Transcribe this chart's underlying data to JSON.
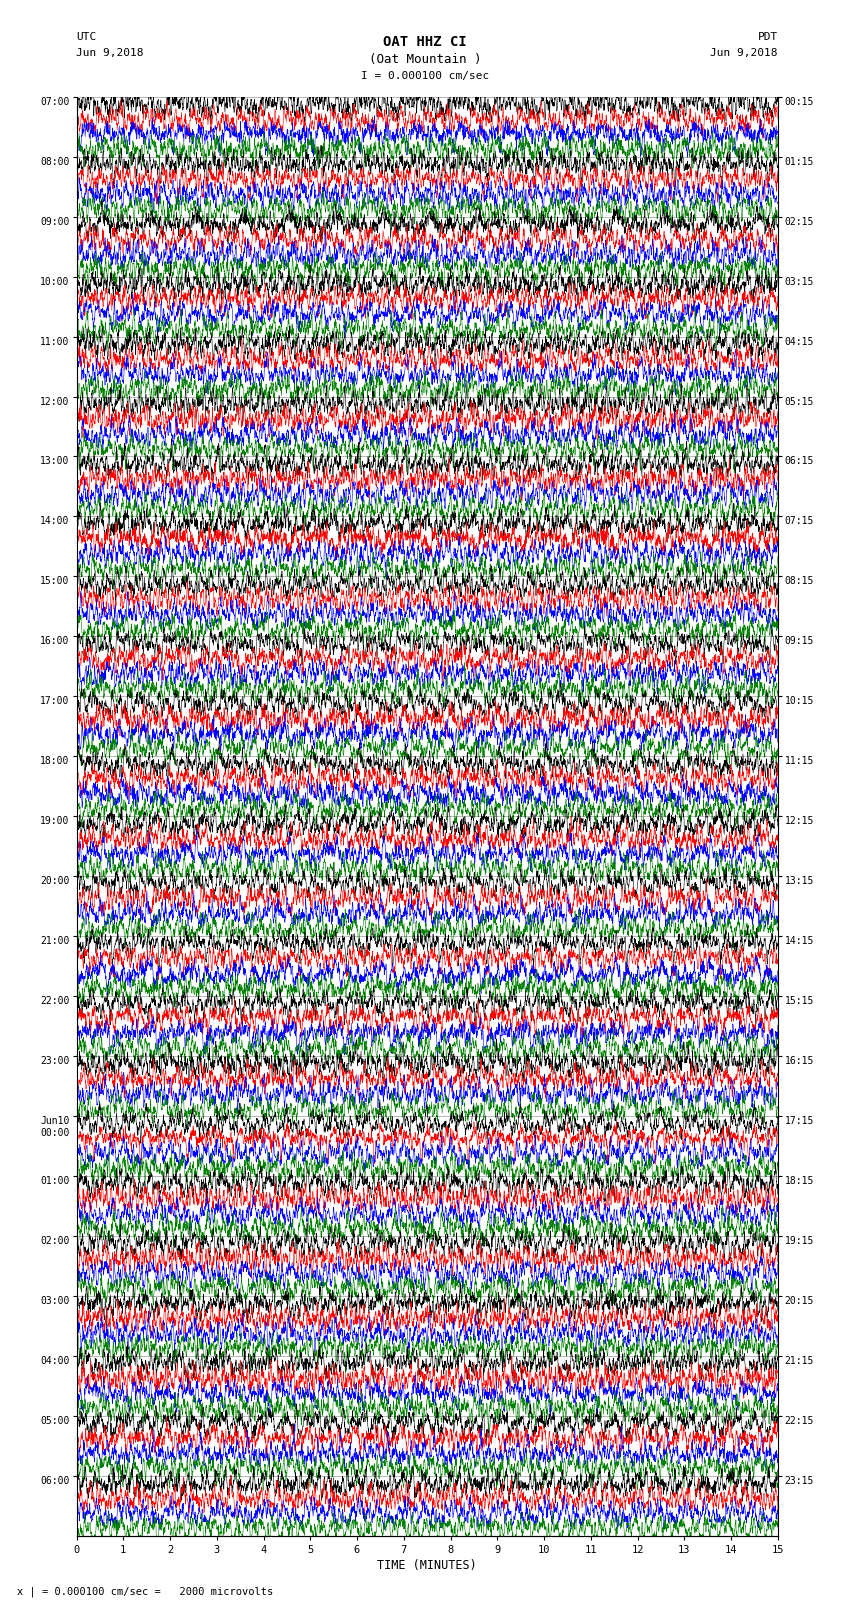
{
  "title_line1": "OAT HHZ CI",
  "title_line2": "(Oat Mountain )",
  "scale_label": "I = 0.000100 cm/sec",
  "footer_label": "x | = 0.000100 cm/sec =   2000 microvolts",
  "utc_label": "UTC",
  "utc_date": "Jun 9,2018",
  "pdt_label": "PDT",
  "pdt_date": "Jun 9,2018",
  "xlabel": "TIME (MINUTES)",
  "left_times": [
    "07:00",
    "08:00",
    "09:00",
    "10:00",
    "11:00",
    "12:00",
    "13:00",
    "14:00",
    "15:00",
    "16:00",
    "17:00",
    "18:00",
    "19:00",
    "20:00",
    "21:00",
    "22:00",
    "23:00",
    "Jun10\n00:00",
    "01:00",
    "02:00",
    "03:00",
    "04:00",
    "05:00",
    "06:00"
  ],
  "right_times": [
    "00:15",
    "01:15",
    "02:15",
    "03:15",
    "04:15",
    "05:15",
    "06:15",
    "07:15",
    "08:15",
    "09:15",
    "10:15",
    "11:15",
    "12:15",
    "13:15",
    "14:15",
    "15:15",
    "16:15",
    "17:15",
    "18:15",
    "19:15",
    "20:15",
    "21:15",
    "22:15",
    "23:15"
  ],
  "num_rows": 24,
  "traces_per_row": 4,
  "minutes_per_row": 15,
  "trace_colors": [
    "black",
    "red",
    "blue",
    "green"
  ],
  "fig_width": 8.5,
  "fig_height": 16.13,
  "bg_color": "white",
  "noise_seed": 42
}
